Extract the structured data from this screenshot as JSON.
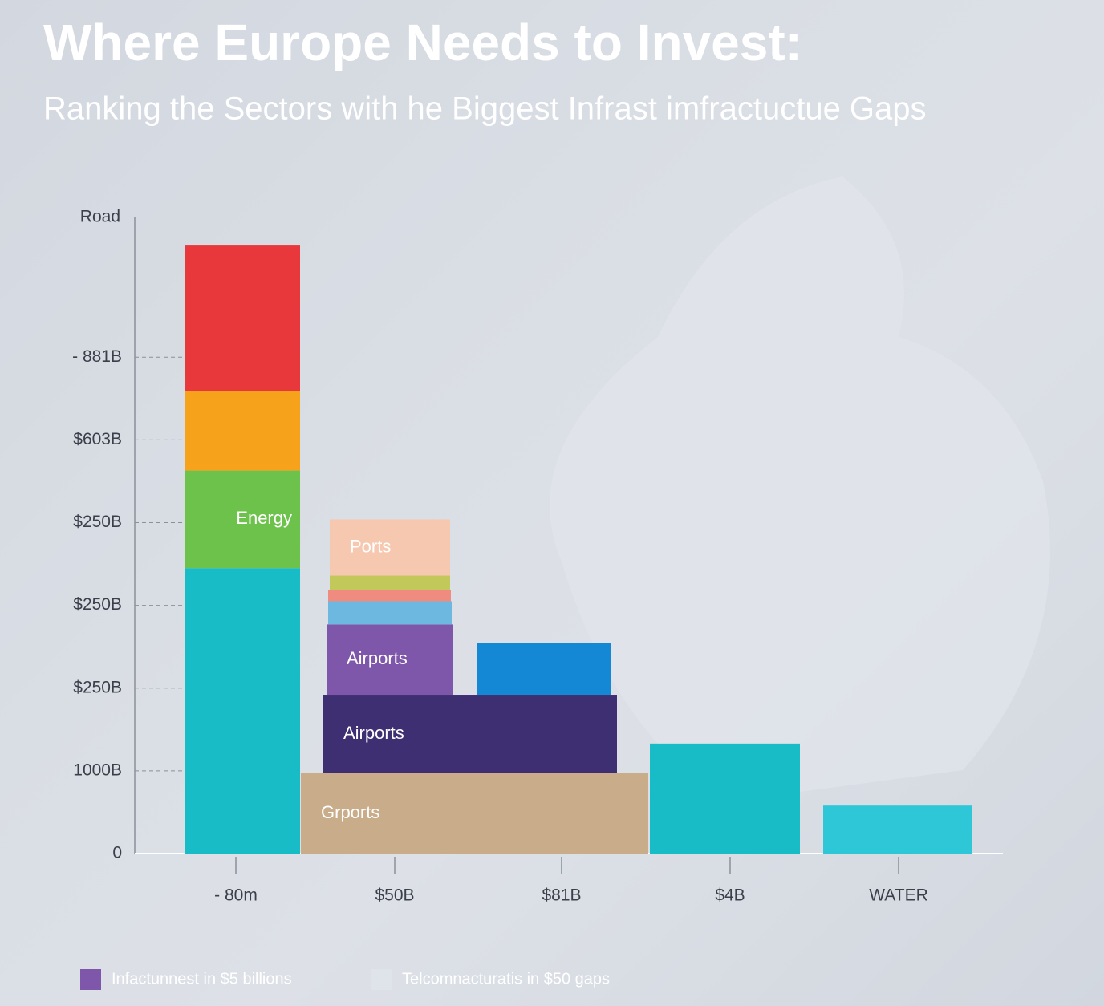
{
  "chart_data": {
    "type": "stacked-blocks",
    "title": "Where Europe Needs to Invest:",
    "subtitle": "Ranking the Sectors with he Biggest  Infrast imfractuctue Gaps",
    "y_label": "Road",
    "categories": [
      "- 80m",
      "$50B",
      "$81B",
      "$4B",
      "WATER"
    ],
    "ylim": [
      0,
      7.7
    ],
    "yticks": [
      0,
      {
        "value": 1,
        "label": "1000B"
      },
      {
        "value": 2,
        "label": "$250B"
      },
      {
        "value": 3,
        "label": "$250B"
      },
      {
        "value": 4,
        "label": "$250B"
      },
      {
        "value": 5,
        "label": "$603B"
      },
      {
        "value": 6,
        "label": "- 881B"
      }
    ],
    "stacks": [
      {
        "segments": [
          {
            "value": 3.45,
            "color": "#17bcc6"
          },
          {
            "value": 1.18,
            "color": "#6cc24a",
            "label": "Energy"
          },
          {
            "value": 0.96,
            "color": "#f7a21b"
          },
          {
            "value": 1.76,
            "color": "#e8383b"
          }
        ]
      },
      {
        "segments": [
          {
            "value": 0.97,
            "color": "#c9ad8b",
            "label": "Grports"
          },
          {
            "value": 0.95,
            "color": "#3e2f73",
            "label": "Airports"
          },
          {
            "value": 0.85,
            "color": "#7f57aa",
            "label": "Airports"
          },
          {
            "value": 0.28,
            "color": "#6cb8e0"
          },
          {
            "value": 0.14,
            "color": "#f08b80"
          },
          {
            "value": 0.17,
            "color": "#c2c95a"
          },
          {
            "value": 0.68,
            "color": "#f7c8b0",
            "label": "Ports"
          }
        ]
      },
      {
        "segments": [
          {
            "value": 0.63,
            "color": "#1488d4"
          }
        ]
      },
      {
        "segments": [
          {
            "value": 1.33,
            "color": "#17bcc6"
          }
        ]
      },
      {
        "segments": [
          {
            "value": 0.58,
            "color": "#2ec7d8"
          }
        ]
      }
    ],
    "legend": [
      {
        "label": "Infactunnest in $5 billions",
        "color": "#7f57aa"
      },
      {
        "label": "Telcomnacturatis in $50 gaps",
        "color": "#dfe4ea"
      }
    ]
  }
}
